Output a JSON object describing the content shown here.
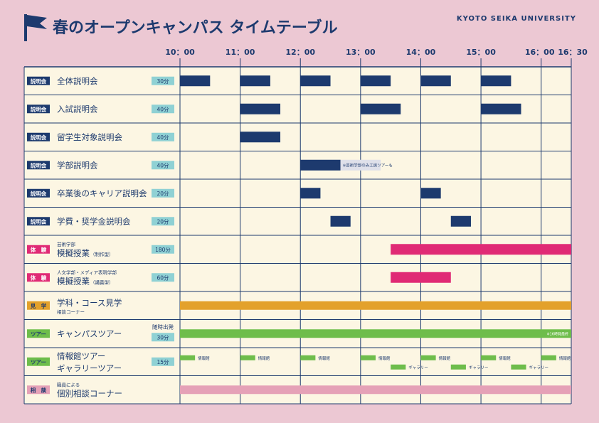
{
  "header": {
    "title": "春のオープンキャンパス タイムテーブル",
    "university": "KYOTO SEIKA UNIVERSITY"
  },
  "colors": {
    "background": "#ecc8d3",
    "panel": "#fcf6e3",
    "grid": "#1d3a6e",
    "navy": "#1d3a6e",
    "magenta": "#e02a75",
    "orange": "#e3a12b",
    "green": "#6ebd4b",
    "pink": "#e5a1b7",
    "duration_badge": "#8fd1d4"
  },
  "chart_data": {
    "type": "gantt",
    "time_ticks": [
      "10：00",
      "11：00",
      "12：00",
      "13：00",
      "14：00",
      "15：00",
      "16：00",
      "16：30"
    ],
    "x_range": [
      "10:00",
      "16:30"
    ],
    "rows": [
      {
        "category": "説明会",
        "category_color": "navy",
        "name": "全体説明会",
        "duration": "30分",
        "bars": [
          {
            "start": "10:00",
            "end": "10:30",
            "color": "navy"
          },
          {
            "start": "11:00",
            "end": "11:30",
            "color": "navy"
          },
          {
            "start": "12:00",
            "end": "12:30",
            "color": "navy"
          },
          {
            "start": "13:00",
            "end": "13:30",
            "color": "navy"
          },
          {
            "start": "14:00",
            "end": "14:30",
            "color": "navy"
          },
          {
            "start": "15:00",
            "end": "15:30",
            "color": "navy"
          }
        ]
      },
      {
        "category": "説明会",
        "category_color": "navy",
        "name": "入試説明会",
        "duration": "40分",
        "bars": [
          {
            "start": "11:00",
            "end": "11:40",
            "color": "navy"
          },
          {
            "start": "13:00",
            "end": "13:40",
            "color": "navy"
          },
          {
            "start": "15:00",
            "end": "15:40",
            "color": "navy"
          }
        ]
      },
      {
        "category": "説明会",
        "category_color": "navy",
        "name": "留学生対象説明会",
        "duration": "40分",
        "bars": [
          {
            "start": "11:00",
            "end": "11:40",
            "color": "navy"
          }
        ]
      },
      {
        "category": "説明会",
        "category_color": "navy",
        "name": "学部説明会",
        "duration": "40分",
        "bars": [
          {
            "start": "12:00",
            "end": "12:40",
            "color": "navy"
          }
        ],
        "note": {
          "text": "※芸術学部のみ工房ツアーも",
          "start": "12:40",
          "end": "13:20"
        }
      },
      {
        "category": "説明会",
        "category_color": "navy",
        "name": "卒業後のキャリア説明会",
        "duration": "20分",
        "bars": [
          {
            "start": "12:00",
            "end": "12:20",
            "color": "navy"
          },
          {
            "start": "14:00",
            "end": "14:20",
            "color": "navy"
          }
        ]
      },
      {
        "category": "説明会",
        "category_color": "navy",
        "name": "学費・奨学金説明会",
        "duration": "20分",
        "bars": [
          {
            "start": "12:30",
            "end": "12:50",
            "color": "navy"
          },
          {
            "start": "14:30",
            "end": "14:50",
            "color": "navy"
          }
        ]
      },
      {
        "category": "体　験",
        "category_color": "magenta",
        "sub": "芸術学部",
        "name": "模擬授業",
        "suffix": "（制作型）",
        "duration": "180分",
        "bars": [
          {
            "start": "13:30",
            "end": "16:30",
            "color": "magenta"
          }
        ]
      },
      {
        "category": "体　験",
        "category_color": "magenta",
        "sub": "人文学部・メディア表現学部",
        "name": "模擬授業",
        "suffix": "（講義型）",
        "duration": "60分",
        "bars": [
          {
            "start": "13:30",
            "end": "14:30",
            "color": "magenta"
          }
        ]
      },
      {
        "category": "見　学",
        "category_color": "orange",
        "name": "学科・コース見学",
        "subline": "相談コーナー",
        "bars": [
          {
            "start": "10:00",
            "end": "16:30",
            "color": "orange"
          }
        ]
      },
      {
        "category": "ツアー",
        "category_color": "green",
        "name": "キャンパスツアー",
        "duration_top": "随時出発",
        "duration": "30分",
        "bars": [
          {
            "start": "10:00",
            "end": "16:30",
            "color": "green"
          }
        ],
        "bar_label": "※16時発最終"
      },
      {
        "category": "ツアー",
        "category_color": "green",
        "name": "情報館ツアー",
        "name2": "ギャラリーツアー",
        "duration": "15分",
        "bars": [
          {
            "start": "10:00",
            "end": "10:15",
            "color": "green",
            "lane": "top",
            "label": "情報館"
          },
          {
            "start": "11:00",
            "end": "11:15",
            "color": "green",
            "lane": "top",
            "label": "情報館"
          },
          {
            "start": "12:00",
            "end": "12:15",
            "color": "green",
            "lane": "top",
            "label": "情報館"
          },
          {
            "start": "13:00",
            "end": "13:15",
            "color": "green",
            "lane": "top",
            "label": "情報館"
          },
          {
            "start": "14:00",
            "end": "14:15",
            "color": "green",
            "lane": "top",
            "label": "情報館"
          },
          {
            "start": "15:00",
            "end": "15:15",
            "color": "green",
            "lane": "top",
            "label": "情報館"
          },
          {
            "start": "16:00",
            "end": "16:15",
            "color": "green",
            "lane": "top",
            "label": "情報館"
          },
          {
            "start": "13:30",
            "end": "13:45",
            "color": "green",
            "lane": "bottom",
            "label": "ギャラリー"
          },
          {
            "start": "14:30",
            "end": "14:45",
            "color": "green",
            "lane": "bottom",
            "label": "ギャラリー"
          },
          {
            "start": "15:30",
            "end": "15:45",
            "color": "green",
            "lane": "bottom",
            "label": "ギャラリー"
          }
        ]
      },
      {
        "category": "相　談",
        "category_color": "pink",
        "sub": "職員による",
        "name": "個別相談コーナー",
        "bars": [
          {
            "start": "10:00",
            "end": "16:30",
            "color": "pink"
          }
        ]
      }
    ]
  }
}
